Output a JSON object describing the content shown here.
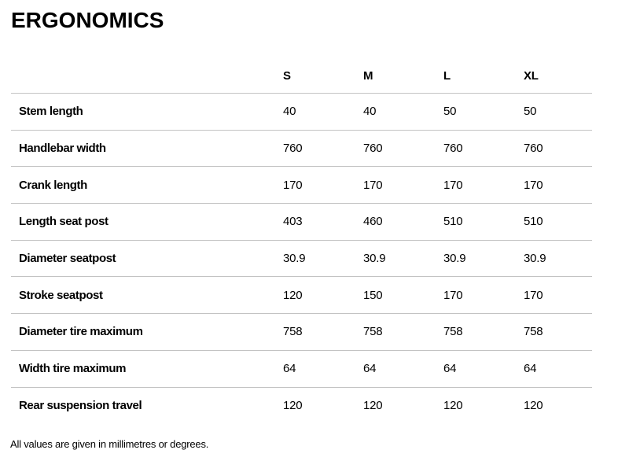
{
  "page": {
    "title": "ERGONOMICS",
    "footnote": "All values are given in millimetres or degrees."
  },
  "table": {
    "columns": [
      "S",
      "M",
      "L",
      "XL"
    ],
    "rows": [
      {
        "label": "Stem length",
        "values": [
          "40",
          "40",
          "50",
          "50"
        ]
      },
      {
        "label": "Handlebar width",
        "values": [
          "760",
          "760",
          "760",
          "760"
        ]
      },
      {
        "label": "Crank length",
        "values": [
          "170",
          "170",
          "170",
          "170"
        ]
      },
      {
        "label": "Length seat post",
        "values": [
          "403",
          "460",
          "510",
          "510"
        ]
      },
      {
        "label": "Diameter seatpost",
        "values": [
          "30.9",
          "30.9",
          "30.9",
          "30.9"
        ]
      },
      {
        "label": "Stroke seatpost",
        "values": [
          "120",
          "150",
          "170",
          "170"
        ]
      },
      {
        "label": "Diameter tire maximum",
        "values": [
          "758",
          "758",
          "758",
          "758"
        ]
      },
      {
        "label": "Width tire maximum",
        "values": [
          "64",
          "64",
          "64",
          "64"
        ]
      },
      {
        "label": "Rear suspension travel",
        "values": [
          "120",
          "120",
          "120",
          "120"
        ]
      }
    ]
  },
  "colors": {
    "background": "#ffffff",
    "text": "#000000",
    "divider": "#c3c3c3"
  }
}
